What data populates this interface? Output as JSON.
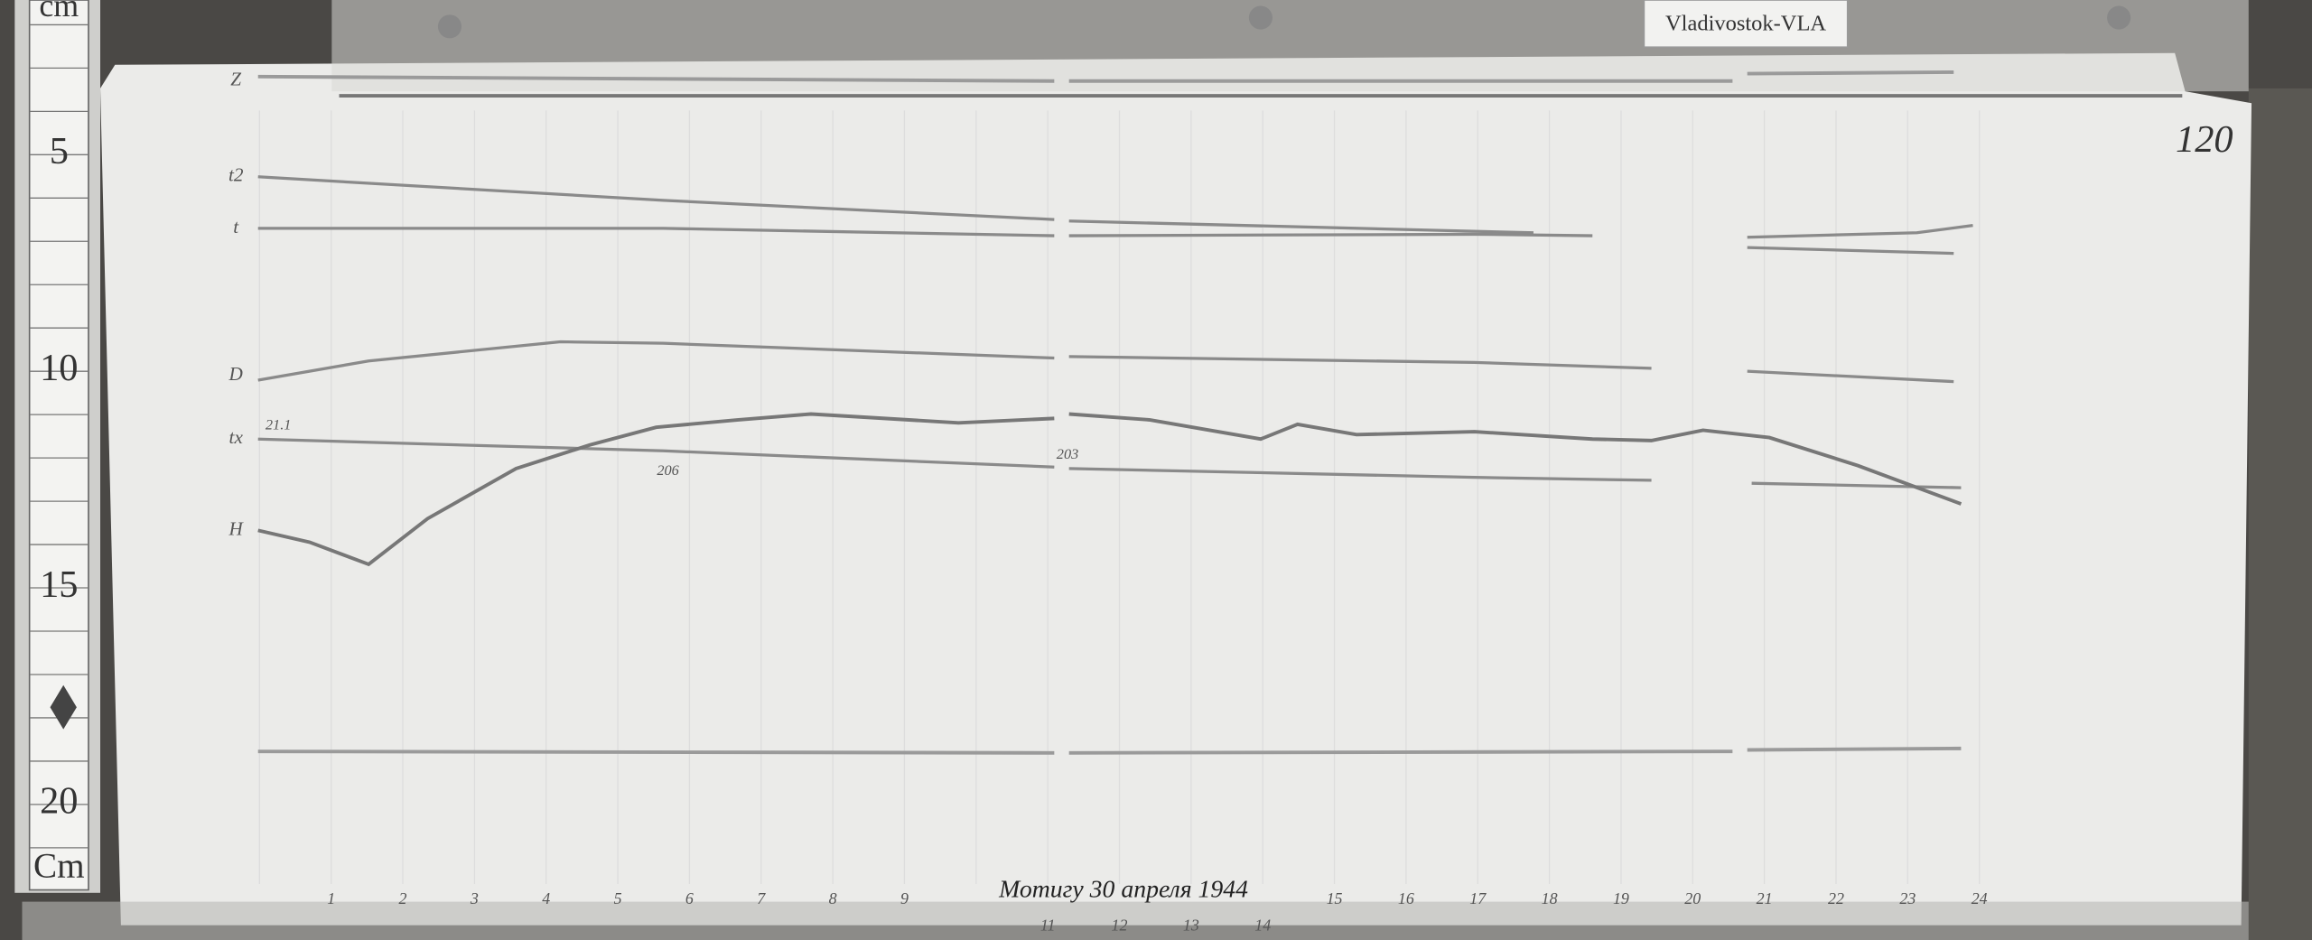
{
  "station_label": "Vladivostok-VLA",
  "sheet_number": "120",
  "ruler": {
    "unit_top": "cm",
    "marks": [
      "5",
      "10",
      "15",
      "20"
    ],
    "unit_bottom": "Cm"
  },
  "trace_labels": [
    "Z",
    "t2",
    "t",
    "D",
    "tx",
    "H"
  ],
  "trace_notes": [
    "21.1",
    "206",
    "203"
  ],
  "hours_top": [
    "1",
    "2",
    "3",
    "4",
    "5",
    "6",
    "7",
    "8",
    "9",
    "15",
    "16",
    "17",
    "18",
    "19",
    "20",
    "21",
    "22",
    "23",
    "24"
  ],
  "hours_bottom": [
    "11",
    "12",
    "13",
    "14"
  ],
  "caption": "Мотигу 30 апреля 1944"
}
